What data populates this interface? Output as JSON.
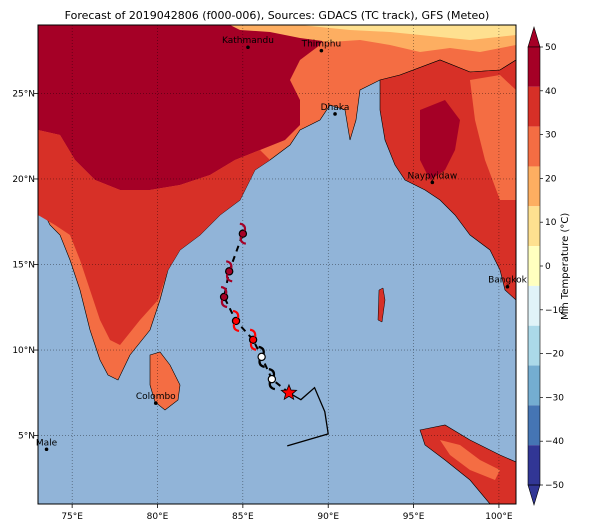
{
  "title": "Forecast of 2019042806 (f000-006), Sources: GDACS (TC track), GFS (Meteo)",
  "map": {
    "lon_range": [
      73.0,
      101.0
    ],
    "lat_range": [
      1.0,
      29.0
    ],
    "x_ticks": [
      {
        "value": 75,
        "label": "75°E"
      },
      {
        "value": 80,
        "label": "80°E"
      },
      {
        "value": 85,
        "label": "85°E"
      },
      {
        "value": 90,
        "label": "90°E"
      },
      {
        "value": 95,
        "label": "95°E"
      },
      {
        "value": 100,
        "label": "100°E"
      }
    ],
    "y_ticks": [
      {
        "value": 5,
        "label": "5°N"
      },
      {
        "value": 10,
        "label": "10°N"
      },
      {
        "value": 15,
        "label": "15°N"
      },
      {
        "value": 20,
        "label": "20°N"
      },
      {
        "value": 25,
        "label": "25°N"
      }
    ],
    "cities": [
      {
        "name": "Kathmandu",
        "lon": 85.3,
        "lat": 27.7
      },
      {
        "name": "Thimphu",
        "lon": 89.6,
        "lat": 27.5
      },
      {
        "name": "Dhaka",
        "lon": 90.4,
        "lat": 23.8
      },
      {
        "name": "Naypyidaw",
        "lon": 96.1,
        "lat": 19.8
      },
      {
        "name": "Bangkok",
        "lon": 100.5,
        "lat": 13.7
      },
      {
        "name": "Colombo",
        "lon": 79.9,
        "lat": 6.9
      },
      {
        "name": "Male",
        "lon": 73.5,
        "lat": 4.2
      }
    ],
    "track_forecast": [
      {
        "lon": 87.7,
        "lat": 7.5,
        "color": "#ff0000",
        "marker": "star"
      },
      {
        "lon": 86.7,
        "lat": 8.3,
        "color": "#ffffff"
      },
      {
        "lon": 86.1,
        "lat": 9.6,
        "color": "#ffffff"
      },
      {
        "lon": 85.6,
        "lat": 10.6,
        "color": "#ff0000"
      },
      {
        "lon": 84.6,
        "lat": 11.7,
        "color": "#ff0000"
      },
      {
        "lon": 83.9,
        "lat": 13.1,
        "color": "#a50026"
      },
      {
        "lon": 84.2,
        "lat": 14.6,
        "color": "#a50026"
      },
      {
        "lon": 85.0,
        "lat": 16.8,
        "color": "#a50026"
      }
    ],
    "track_past": [
      {
        "lon": 87.7,
        "lat": 7.5
      },
      {
        "lon": 88.4,
        "lat": 7.1
      },
      {
        "lon": 89.2,
        "lat": 7.8
      },
      {
        "lon": 89.8,
        "lat": 6.4
      },
      {
        "lon": 90.0,
        "lat": 5.1
      },
      {
        "lon": 87.6,
        "lat": 4.4
      }
    ]
  },
  "colorbar": {
    "label": "Min Temperature (°C)",
    "ticks": [
      "50",
      "40",
      "30",
      "20",
      "10",
      "0",
      "−10",
      "−20",
      "−30",
      "−40",
      "−50"
    ],
    "colors": [
      "#a50026",
      "#d73027",
      "#f46d43",
      "#fdae61",
      "#fee090",
      "#ffffbf",
      "#e0f3f8",
      "#abd9e9",
      "#74add1",
      "#4575b4",
      "#313695"
    ]
  }
}
